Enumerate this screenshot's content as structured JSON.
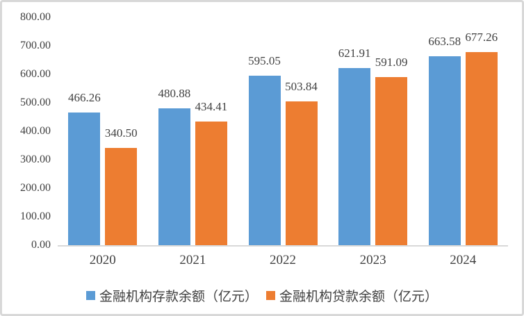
{
  "window": {
    "background": "#ffffff",
    "frame_border_color": "#d8d8d8"
  },
  "chart_data": {
    "type": "bar",
    "title": "",
    "xlabel": "",
    "ylabel": "",
    "categories": [
      "2020",
      "2021",
      "2022",
      "2023",
      "2024"
    ],
    "series": [
      {
        "name": "金融机构存款余额（亿元）",
        "color": "#5b9bd5",
        "values": [
          466.26,
          480.88,
          595.05,
          621.91,
          663.58
        ],
        "labels": [
          "466.26",
          "480.88",
          "595.05",
          "621.91",
          "663.58"
        ]
      },
      {
        "name": "金融机构贷款余额（亿元）",
        "color": "#ed7d31",
        "values": [
          340.5,
          434.41,
          503.84,
          591.09,
          677.26
        ],
        "labels": [
          "340.50",
          "434.41",
          "503.84",
          "591.09",
          "677.26"
        ]
      }
    ],
    "ylim": [
      0,
      800
    ],
    "ytick_values": [
      800,
      700,
      600,
      500,
      400,
      300,
      200,
      100,
      0
    ],
    "ytick_labels": [
      "800.00",
      "700.00",
      "600.00",
      "500.00",
      "400.00",
      "300.00",
      "200.00",
      "100.00",
      "0.00"
    ],
    "grid": false,
    "data_labels": true,
    "legend_position": "bottom",
    "axis_line_color": "#d9d9d9",
    "text_color": "#404040"
  }
}
